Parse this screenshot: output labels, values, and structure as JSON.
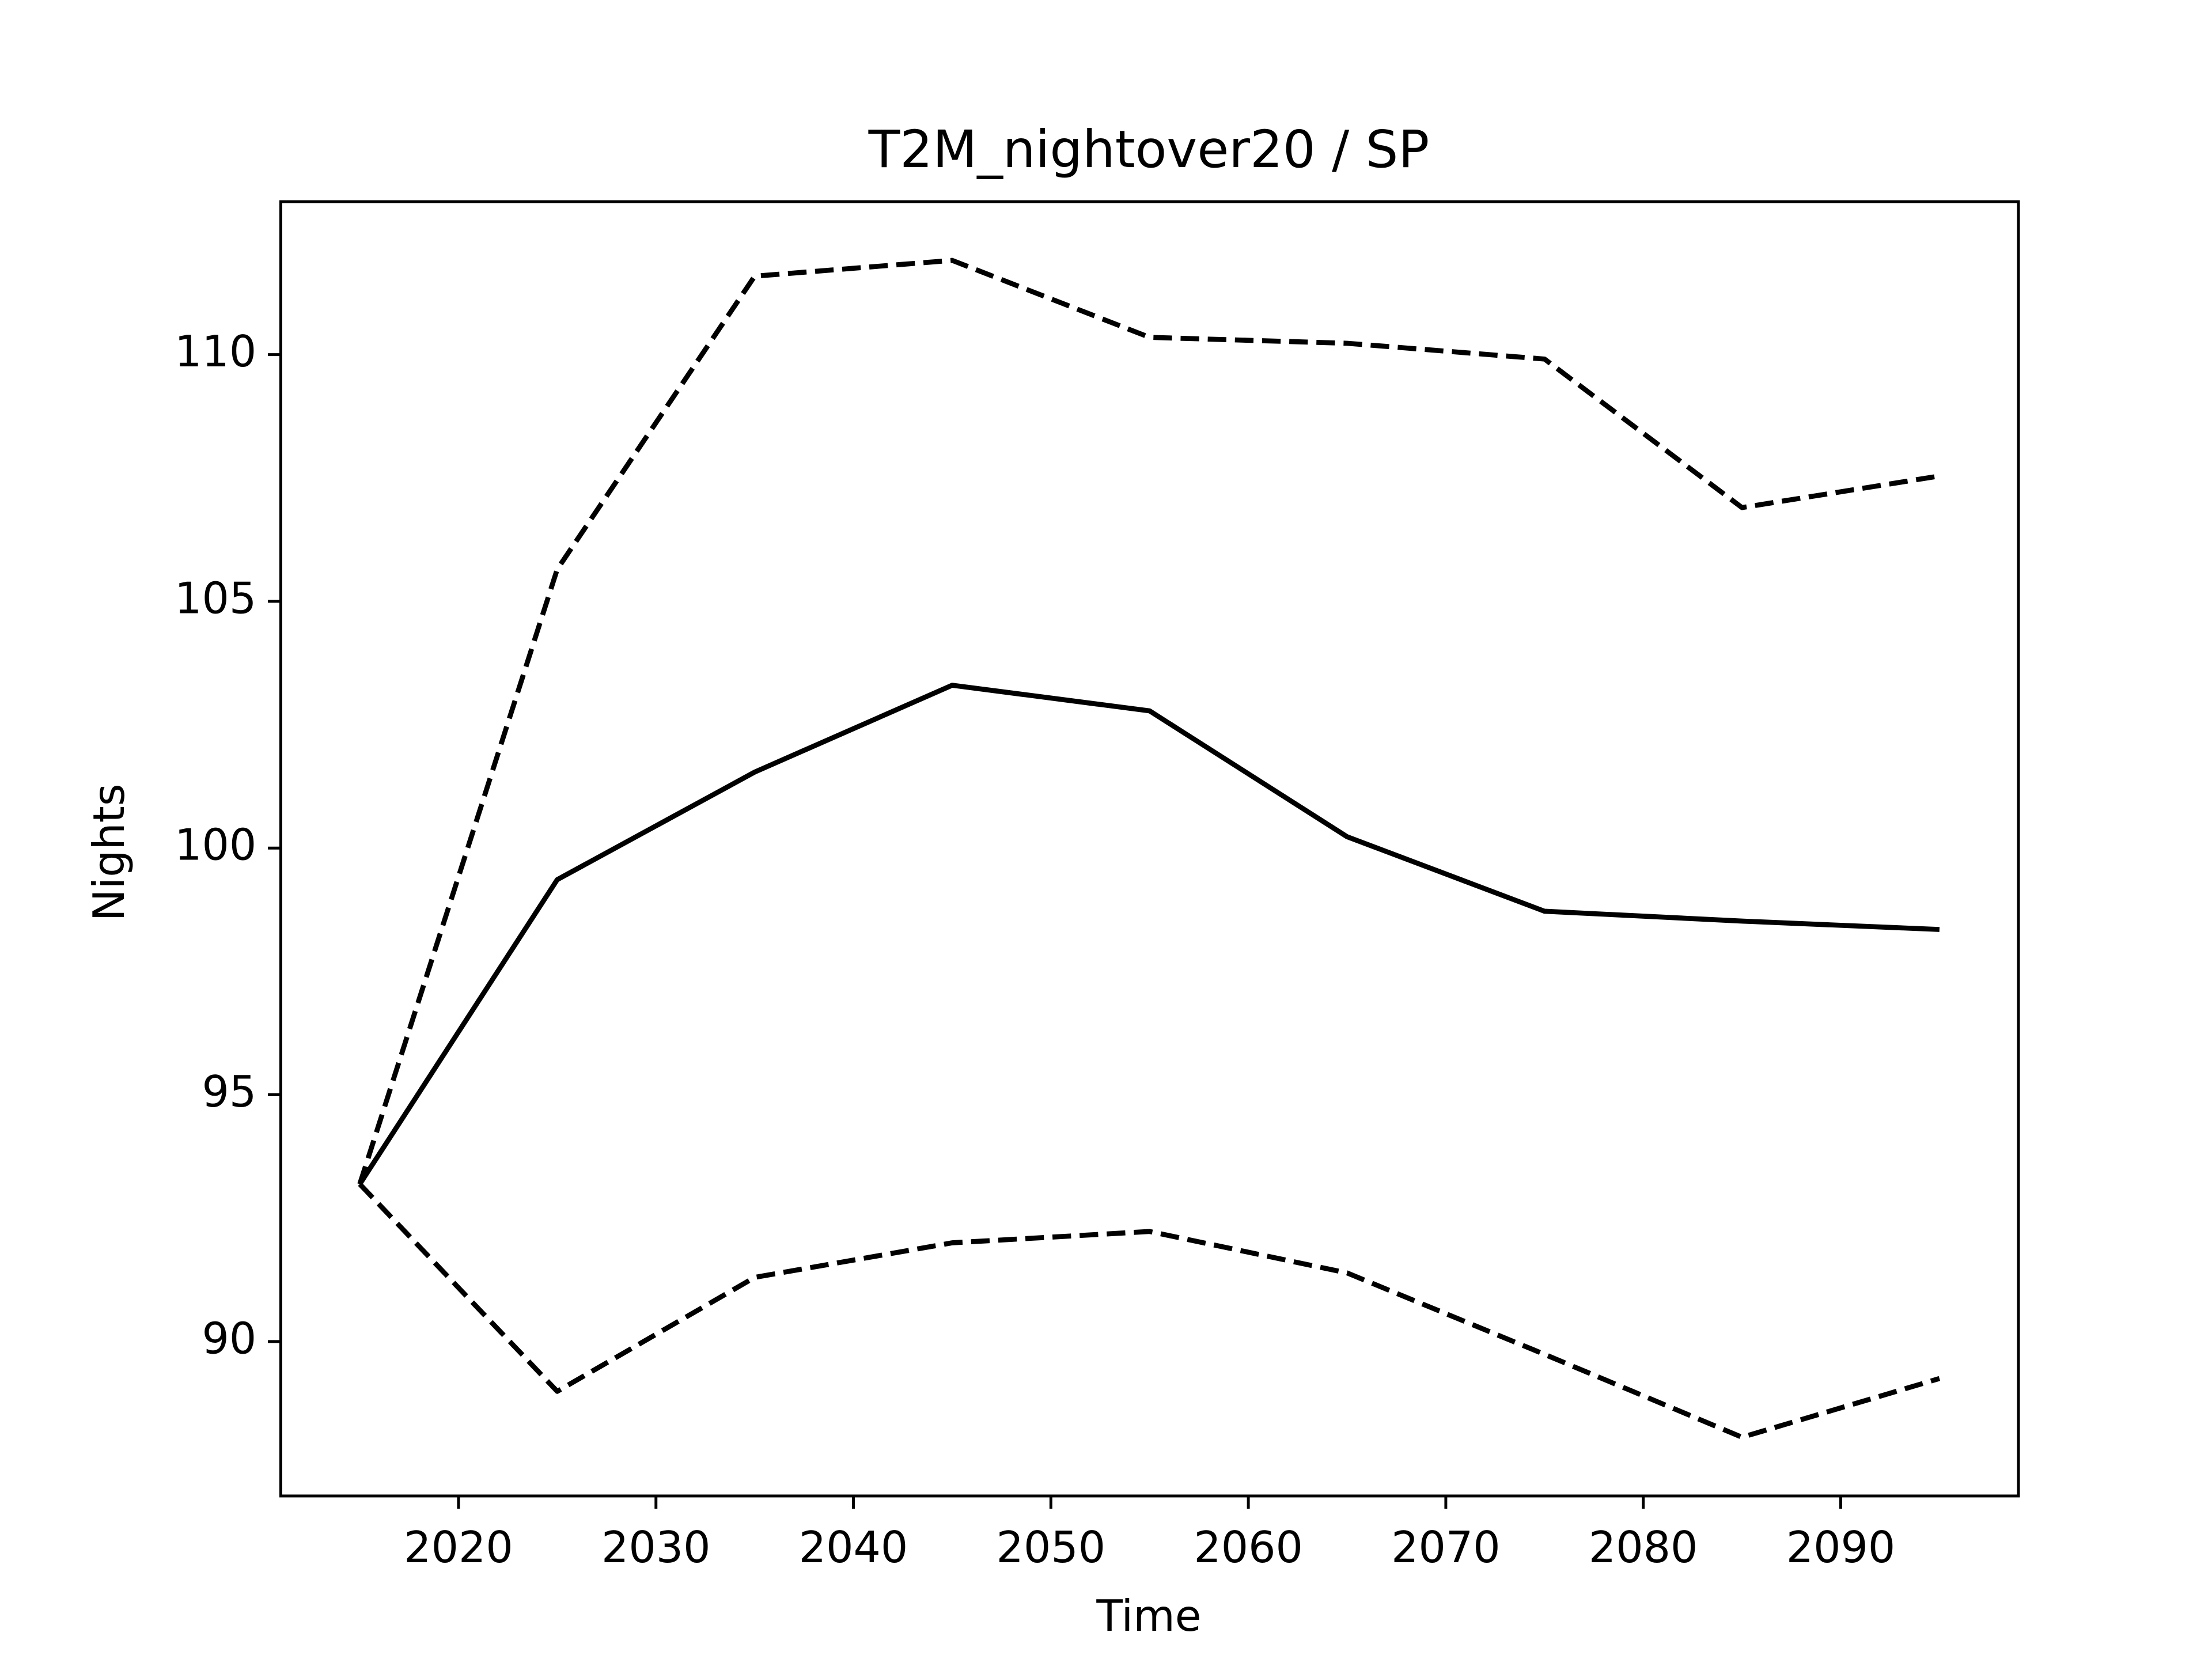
{
  "chart_data": {
    "type": "line",
    "title": "T2M_nightover20 / SP",
    "x_label": "Time",
    "y_label": "Nights",
    "x": [
      2015,
      2025,
      2035,
      2045,
      2055,
      2065,
      2075,
      2085,
      2095
    ],
    "series": [
      {
        "color": "#000000",
        "linestyle": "solid",
        "values": [
          93.19,
          99.36,
          101.54,
          103.3,
          102.78,
          100.23,
          98.72,
          98.52,
          98.35
        ]
      },
      {
        "color": "#000000",
        "linestyle": "dashed",
        "values": [
          93.19,
          105.65,
          111.59,
          111.91,
          110.35,
          110.23,
          109.91,
          106.9,
          107.54
        ]
      },
      {
        "color": "#000000",
        "linestyle": "dashed",
        "values": [
          93.19,
          88.99,
          91.3,
          92.0,
          92.23,
          91.39,
          89.74,
          88.06,
          89.25
        ]
      }
    ],
    "xlim": [
      2011,
      2099
    ],
    "ylim": [
      86.87,
      113.1
    ],
    "xticks": [
      2020,
      2030,
      2040,
      2050,
      2060,
      2070,
      2080,
      2090
    ],
    "yticks": [
      90,
      95,
      100,
      105,
      110
    ],
    "grid": false
  }
}
